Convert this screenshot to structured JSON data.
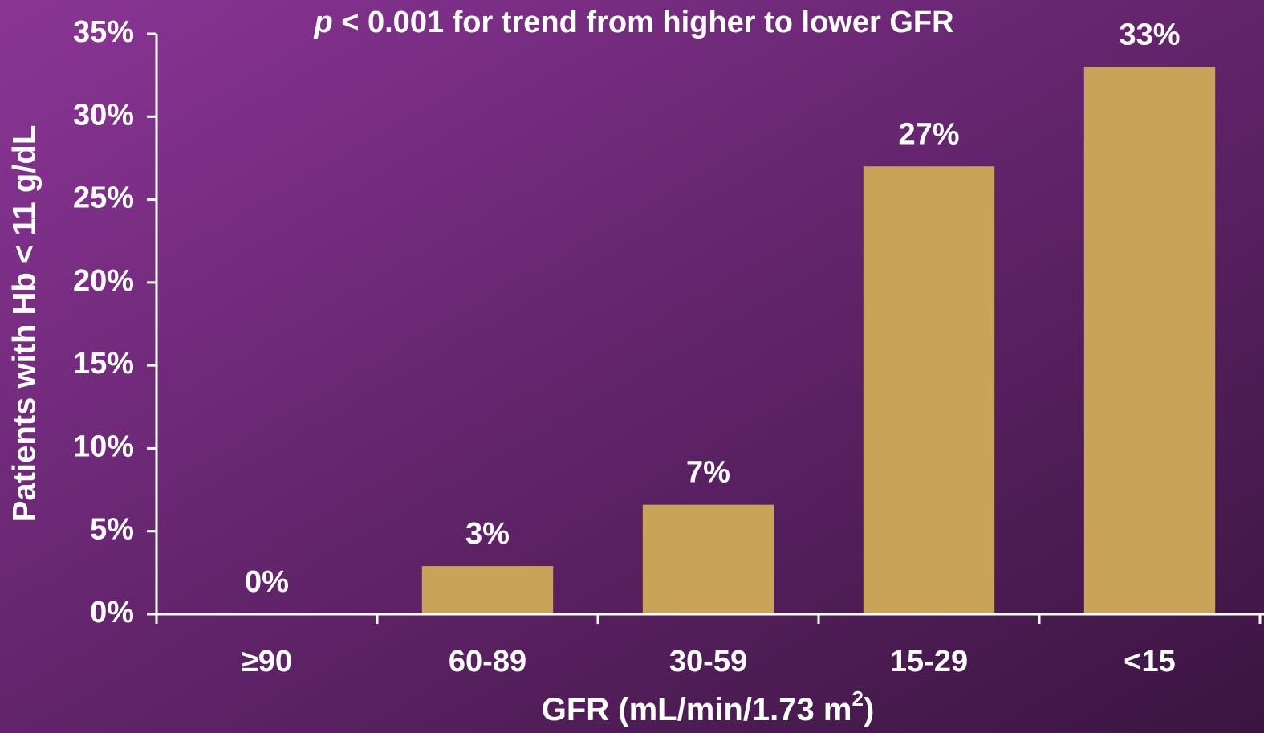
{
  "chart_data": {
    "type": "bar",
    "title": [
      "p",
      " < 0.001 for trend from higher to lower GFR"
    ],
    "x_label": [
      "GFR (mL/min/1.73 m",
      "2",
      ")"
    ],
    "y_label": "Patients with Hb < 11 g/dL",
    "categories": [
      "≥90",
      "60-89",
      "30-59",
      "15-29",
      "<15"
    ],
    "values": [
      0,
      2.9,
      6.6,
      27,
      33
    ],
    "value_labels": [
      "0%",
      "3%",
      "7%",
      "27%",
      "33%"
    ],
    "color": "#c9a458",
    "ylim": [
      0,
      35
    ],
    "yticks": [
      {
        "value": 0,
        "label": "0%"
      },
      {
        "value": 5,
        "label": "5%"
      },
      {
        "value": 10,
        "label": "10%"
      },
      {
        "value": 15,
        "label": "15%"
      },
      {
        "value": 20,
        "label": "20%"
      },
      {
        "value": 25,
        "label": "25%"
      },
      {
        "value": 30,
        "label": "30%"
      },
      {
        "value": 35,
        "label": "35%"
      }
    ],
    "grid": false
  }
}
